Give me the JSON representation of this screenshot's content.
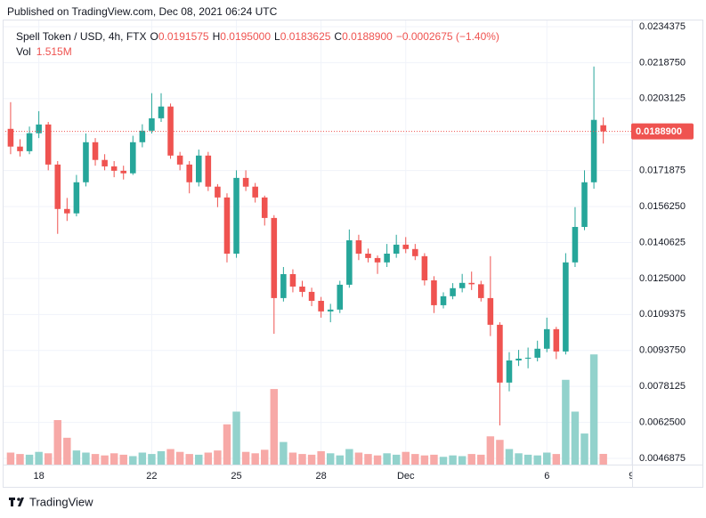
{
  "chart_data": {
    "type": "candlestick",
    "published": "Published on TradingView.com, Dec 08, 2021 06:24 UTC",
    "brand": "TradingView",
    "legend": {
      "symbol": "Spell Token / USD, 4h, FTX",
      "fields": [
        {
          "key": "O",
          "label": "0.0191575"
        },
        {
          "key": "H",
          "label": "0.0195000"
        },
        {
          "key": "L",
          "label": "0.0183625"
        },
        {
          "key": "C",
          "label": "0.0188900"
        }
      ],
      "change": "−0.0002675 (−1.40%)"
    },
    "volume_legend": {
      "name": "Vol",
      "label": "1.515M"
    },
    "up_color": "#26a69a",
    "down_color": "#ef5350",
    "up_volume_color": "#92d2cc",
    "down_volume_color": "#f7a9a7",
    "grid": true,
    "last_price": {
      "value": 0.01889,
      "label": "0.0188900"
    },
    "xlim": [
      -30,
      506
    ],
    "xticks": [
      {
        "value": 0,
        "label": "18"
      },
      {
        "value": 96,
        "label": "22"
      },
      {
        "value": 168,
        "label": "25"
      },
      {
        "value": 240,
        "label": "28"
      },
      {
        "value": 312,
        "label": "Dec"
      },
      {
        "value": 432,
        "label": "6"
      },
      {
        "value": 504,
        "label": "9"
      }
    ],
    "ylim": [
      0.004417,
      0.023747
    ],
    "yticks": [
      0.0234375,
      {
        "value": 0.021875,
        "label": "0.0218750"
      },
      0.0203125,
      {
        "value": 0.01875,
        "label": "0.0187500"
      },
      0.0171875,
      {
        "value": 0.015625,
        "label": "0.0156250"
      },
      0.0140625,
      {
        "value": 0.0125,
        "label": "0.0125000"
      },
      0.0109375,
      {
        "value": 0.009375,
        "label": "0.0093750"
      },
      0.0078125,
      {
        "value": 0.00625,
        "label": "0.0062500"
      },
      0.0046875
    ],
    "volume_lim": [
      0,
      63000000
    ],
    "x": [
      -24,
      -16,
      -8,
      0,
      8,
      16,
      24,
      32,
      40,
      48,
      56,
      64,
      72,
      80,
      88,
      96,
      104,
      112,
      120,
      128,
      136,
      144,
      152,
      160,
      168,
      176,
      184,
      192,
      200,
      208,
      216,
      224,
      232,
      240,
      248,
      256,
      264,
      272,
      280,
      288,
      296,
      304,
      312,
      320,
      328,
      336,
      344,
      352,
      360,
      368,
      376,
      384,
      392,
      400,
      408,
      416,
      424,
      432,
      440,
      448,
      456,
      464,
      472,
      480
    ],
    "open": [
      0.019,
      0.01823,
      0.01803,
      0.01881,
      0.01919,
      0.01745,
      0.01552,
      0.01533,
      0.01668,
      0.01842,
      0.01765,
      0.01737,
      0.01718,
      0.01707,
      0.01842,
      0.01892,
      0.01946,
      0.01997,
      0.01784,
      0.01745,
      0.01668,
      0.01784,
      0.01649,
      0.01602,
      0.01358,
      0.01687,
      0.01649,
      0.01602,
      0.01513,
      0.01165,
      0.01269,
      0.01215,
      0.01192,
      0.01153,
      0.01107,
      0.01115,
      0.01223,
      0.01416,
      0.01358,
      0.01339,
      0.0132,
      0.01358,
      0.01397,
      0.01378,
      0.01347,
      0.01242,
      0.01134,
      0.01173,
      0.01208,
      0.01231,
      0.01225,
      0.01165,
      0.01049,
      0.00798,
      0.00894,
      0.00902,
      0.00906,
      0.00945,
      0.0103,
      0.00933,
      0.0132,
      0.01474,
      0.01668,
      0.0191575
    ],
    "high": [
      0.02016,
      0.01855,
      0.0191,
      0.01977,
      0.0193,
      0.0176,
      0.016,
      0.017,
      0.0188,
      0.0186,
      0.0179,
      0.0176,
      0.0174,
      0.0187,
      0.0192,
      0.02055,
      0.02055,
      0.0201,
      0.018,
      0.0176,
      0.0181,
      0.018,
      0.0166,
      0.0162,
      0.0172,
      0.0172,
      0.01665,
      0.0161,
      0.01525,
      0.013,
      0.0129,
      0.0124,
      0.0121,
      0.0117,
      0.0114,
      0.0124,
      0.01463,
      0.0144,
      0.0138,
      0.0135,
      0.014,
      0.0144,
      0.0143,
      0.014,
      0.0136,
      0.0126,
      0.0119,
      0.0123,
      0.0127,
      0.0128,
      0.0124,
      0.01347,
      0.0106,
      0.0093,
      0.0094,
      0.0095,
      0.0098,
      0.0108,
      0.0104,
      0.0136,
      0.0156,
      0.0172,
      0.02171,
      0.0195
    ],
    "low": [
      0.0179,
      0.0178,
      0.0179,
      0.0186,
      0.0172,
      0.01444,
      0.015,
      0.0152,
      0.0165,
      0.0174,
      0.0172,
      0.0169,
      0.0168,
      0.017,
      0.0182,
      0.0188,
      0.0193,
      0.0177,
      0.0172,
      0.0162,
      0.0165,
      0.0163,
      0.0156,
      0.0132,
      0.0134,
      0.0163,
      0.0158,
      0.0148,
      0.0101,
      0.0115,
      0.0119,
      0.0117,
      0.0113,
      0.0108,
      0.0106,
      0.011,
      0.0121,
      0.0133,
      0.0132,
      0.0127,
      0.013,
      0.0134,
      0.0136,
      0.0133,
      0.0122,
      0.011,
      0.0112,
      0.0116,
      0.0119,
      0.012,
      0.0115,
      0.01,
      0.00612,
      0.0076,
      0.0087,
      0.0086,
      0.0089,
      0.0093,
      0.009,
      0.0092,
      0.013,
      0.0146,
      0.0164,
      0.0183625
    ],
    "close": [
      0.01823,
      0.01803,
      0.01881,
      0.01919,
      0.01745,
      0.01552,
      0.01533,
      0.01668,
      0.01842,
      0.01765,
      0.01737,
      0.01718,
      0.01707,
      0.01842,
      0.01892,
      0.01946,
      0.01997,
      0.01784,
      0.01745,
      0.01668,
      0.01784,
      0.01649,
      0.01602,
      0.01358,
      0.01687,
      0.01649,
      0.01602,
      0.01513,
      0.01165,
      0.01269,
      0.01215,
      0.01192,
      0.01153,
      0.01107,
      0.01115,
      0.01223,
      0.01416,
      0.01358,
      0.01339,
      0.0132,
      0.01358,
      0.01397,
      0.01378,
      0.01347,
      0.01242,
      0.01134,
      0.01173,
      0.01208,
      0.01231,
      0.01225,
      0.01165,
      0.01049,
      0.00798,
      0.00894,
      0.00902,
      0.00906,
      0.00945,
      0.0103,
      0.00933,
      0.0132,
      0.01474,
      0.01668,
      0.01939,
      0.01889
    ],
    "volume": [
      1700000,
      1500000,
      1400000,
      1800000,
      1600000,
      6300000,
      3800000,
      2000000,
      1700000,
      1500000,
      1300000,
      1600000,
      1400000,
      1200000,
      1700000,
      1500000,
      1900000,
      2200000,
      1800000,
      1500000,
      1400000,
      1700000,
      2000000,
      5700000,
      7500000,
      1800000,
      1600000,
      2100000,
      10700000,
      3200000,
      1700000,
      1500000,
      1400000,
      1900000,
      1600000,
      1300000,
      2200000,
      1700000,
      1500000,
      1300000,
      1600000,
      1400000,
      1800000,
      1500000,
      1300000,
      1400000,
      1100000,
      1300000,
      1200000,
      1500000,
      1400000,
      4000000,
      3500000,
      2200000,
      1600000,
      1400000,
      1300000,
      1700000,
      1500000,
      12000000,
      7500000,
      4400000,
      15600000,
      1515000
    ]
  }
}
